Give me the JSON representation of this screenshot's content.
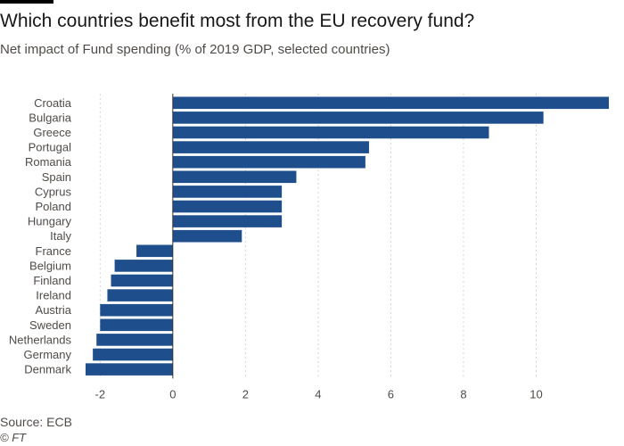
{
  "header": {
    "title": "Which countries benefit most from the EU recovery fund?",
    "subtitle": "Net impact of Fund spending (% of 2019 GDP, selected countries)"
  },
  "footer": {
    "source": "Source: ECB",
    "copyright": "© FT"
  },
  "colors": {
    "bar": "#1f4e8c",
    "grid": "#d8d4d0",
    "zero_line": "#333333",
    "tick_text": "#4f4b48"
  },
  "chart_data": {
    "type": "bar",
    "orientation": "horizontal",
    "title": "Which countries benefit most from the EU recovery fund?",
    "subtitle": "Net impact of Fund spending (% of 2019 GDP, selected countries)",
    "categories": [
      "Croatia",
      "Bulgaria",
      "Greece",
      "Portugal",
      "Romania",
      "Spain",
      "Cyprus",
      "Poland",
      "Hungary",
      "Italy",
      "France",
      "Belgium",
      "Finland",
      "Ireland",
      "Austria",
      "Sweden",
      "Netherlands",
      "Germany",
      "Denmark"
    ],
    "values": [
      12.0,
      10.2,
      8.7,
      5.4,
      5.3,
      3.4,
      3.0,
      3.0,
      3.0,
      1.9,
      -1.0,
      -1.6,
      -1.7,
      -1.8,
      -2.0,
      -2.0,
      -2.1,
      -2.2,
      -2.4
    ],
    "xlim": [
      -2.4,
      12.0
    ],
    "xticks": [
      -2,
      0,
      2,
      4,
      6,
      8,
      10
    ],
    "xtick_labels": [
      "-2",
      "0",
      "2",
      "4",
      "6",
      "8",
      "10"
    ],
    "grid": true,
    "legend": "none"
  }
}
